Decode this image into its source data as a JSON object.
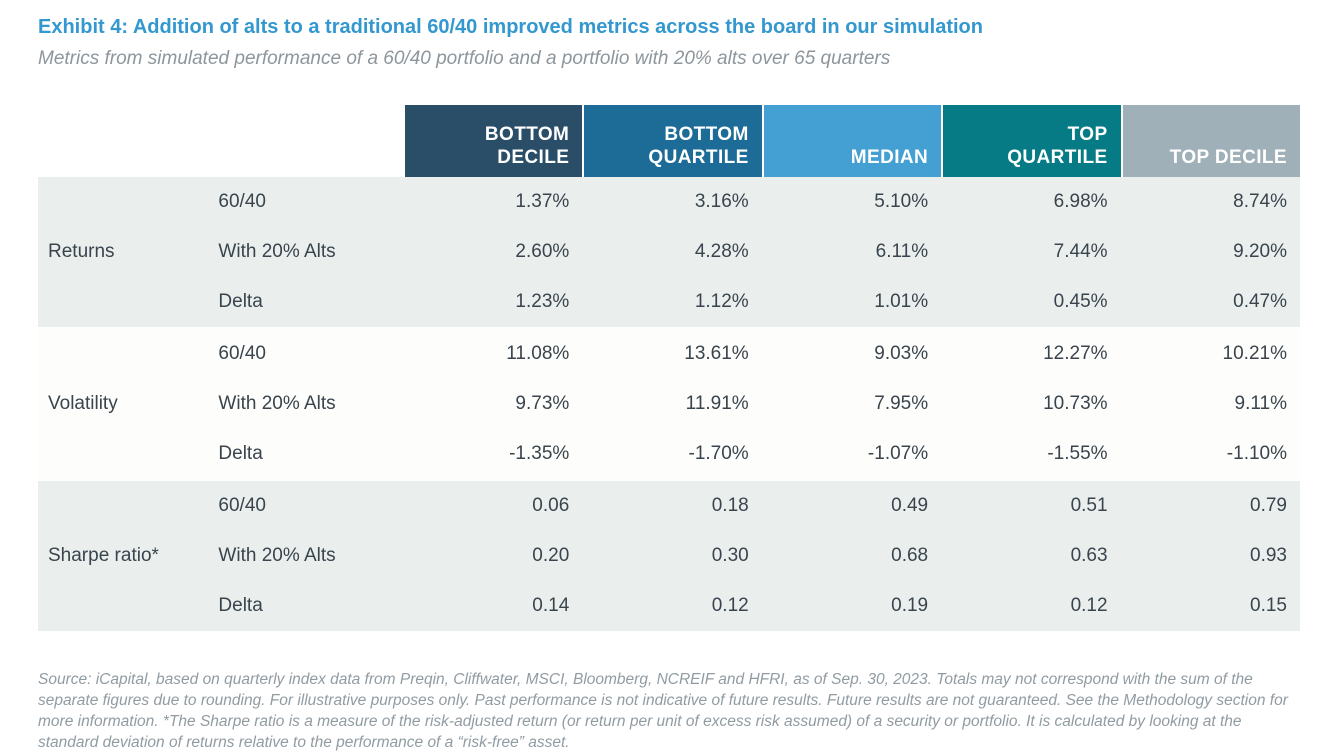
{
  "exhibit": {
    "title": "Exhibit 4: Addition of alts to a traditional 60/40 improved metrics across the board in our simulation",
    "subtitle": "Metrics from simulated performance of a 60/40 portfolio and a portfolio with 20% alts over 65 quarters",
    "footnote": "Source: iCapital, based on quarterly index data from Preqin, Cliffwater, MSCI, Bloomberg, NCREIF and HFRI, as of Sep. 30, 2023. Totals may not correspond with the sum of the separate figures due to rounding. For illustrative purposes only. Past performance is not indicative of future results. Future results are not guaranteed. See the Methodology section for more information. *The Sharpe ratio is a measure of the risk-adjusted return (or return per unit of excess risk assumed) of a security or portfolio. It is calculated by looking at the standard deviation of returns relative to the performance of a “risk-free” asset."
  },
  "colors": {
    "title_blue": "#3398cf",
    "header_bottom_decile": "#2b4e68",
    "header_bottom_quartile": "#1d6b97",
    "header_median": "#44a0d3",
    "header_top_quartile": "#077b85",
    "header_top_decile": "#9fb0b8",
    "band_gray": "#eaefee",
    "band_light": "#fdfdfb",
    "cell_text": "#3a444d",
    "muted_text": "#8c969c"
  },
  "table": {
    "column_headers": [
      "BOTTOM\nDECILE",
      "BOTTOM\nQUARTILE",
      "MEDIAN",
      "TOP\nQUARTILE",
      "TOP DECILE"
    ],
    "sections": [
      {
        "label": "Returns",
        "rows": [
          {
            "label": "60/40",
            "values": [
              "1.37%",
              "3.16%",
              "5.10%",
              "6.98%",
              "8.74%"
            ]
          },
          {
            "label": "With 20% Alts",
            "values": [
              "2.60%",
              "4.28%",
              "6.11%",
              "7.44%",
              "9.20%"
            ]
          },
          {
            "label": "Delta",
            "values": [
              "1.23%",
              "1.12%",
              "1.01%",
              "0.45%",
              "0.47%"
            ]
          }
        ]
      },
      {
        "label": "Volatility",
        "rows": [
          {
            "label": "60/40",
            "values": [
              "11.08%",
              "13.61%",
              "9.03%",
              "12.27%",
              "10.21%"
            ]
          },
          {
            "label": "With 20% Alts",
            "values": [
              "9.73%",
              "11.91%",
              "7.95%",
              "10.73%",
              "9.11%"
            ]
          },
          {
            "label": "Delta",
            "values": [
              "-1.35%",
              "-1.70%",
              "-1.07%",
              "-1.55%",
              "-1.10%"
            ]
          }
        ]
      },
      {
        "label": "Sharpe ratio*",
        "rows": [
          {
            "label": "60/40",
            "values": [
              "0.06",
              "0.18",
              "0.49",
              "0.51",
              "0.79"
            ]
          },
          {
            "label": "With 20% Alts",
            "values": [
              "0.20",
              "0.30",
              "0.68",
              "0.63",
              "0.93"
            ]
          },
          {
            "label": "Delta",
            "values": [
              "0.14",
              "0.12",
              "0.19",
              "0.12",
              "0.15"
            ]
          }
        ]
      }
    ]
  }
}
